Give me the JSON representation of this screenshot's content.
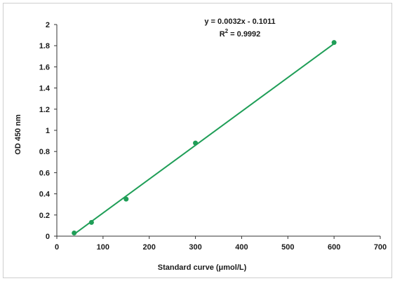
{
  "chart_data": {
    "type": "scatter",
    "xlabel": "Standard curve (μmol/L)",
    "ylabel": "OD 450 nm",
    "xlim": [
      0,
      700
    ],
    "ylim": [
      0,
      2
    ],
    "x_ticks": [
      "0",
      "100",
      "200",
      "300",
      "400",
      "500",
      "600",
      "700"
    ],
    "y_ticks": [
      "0",
      "0.2",
      "0.4",
      "0.6",
      "0.8",
      "1",
      "1.2",
      "1.4",
      "1.6",
      "1.8",
      "2"
    ],
    "grid": false,
    "legend": "none",
    "series": [
      {
        "x": [
          37.5,
          75,
          150,
          300,
          600
        ],
        "y": [
          0.03,
          0.13,
          0.35,
          0.88,
          1.83
        ],
        "color": "#1f9e57"
      }
    ],
    "trendline": {
      "slope": 0.0032,
      "intercept": -0.1011,
      "x_range": [
        37.5,
        600
      ],
      "color": "#1f9e57"
    },
    "annotations": {
      "equation": "y = 0.0032x - 0.1011",
      "r_squared_label": "R",
      "r_squared_sup": "2",
      "r_squared_value": " = 0.9992"
    }
  }
}
